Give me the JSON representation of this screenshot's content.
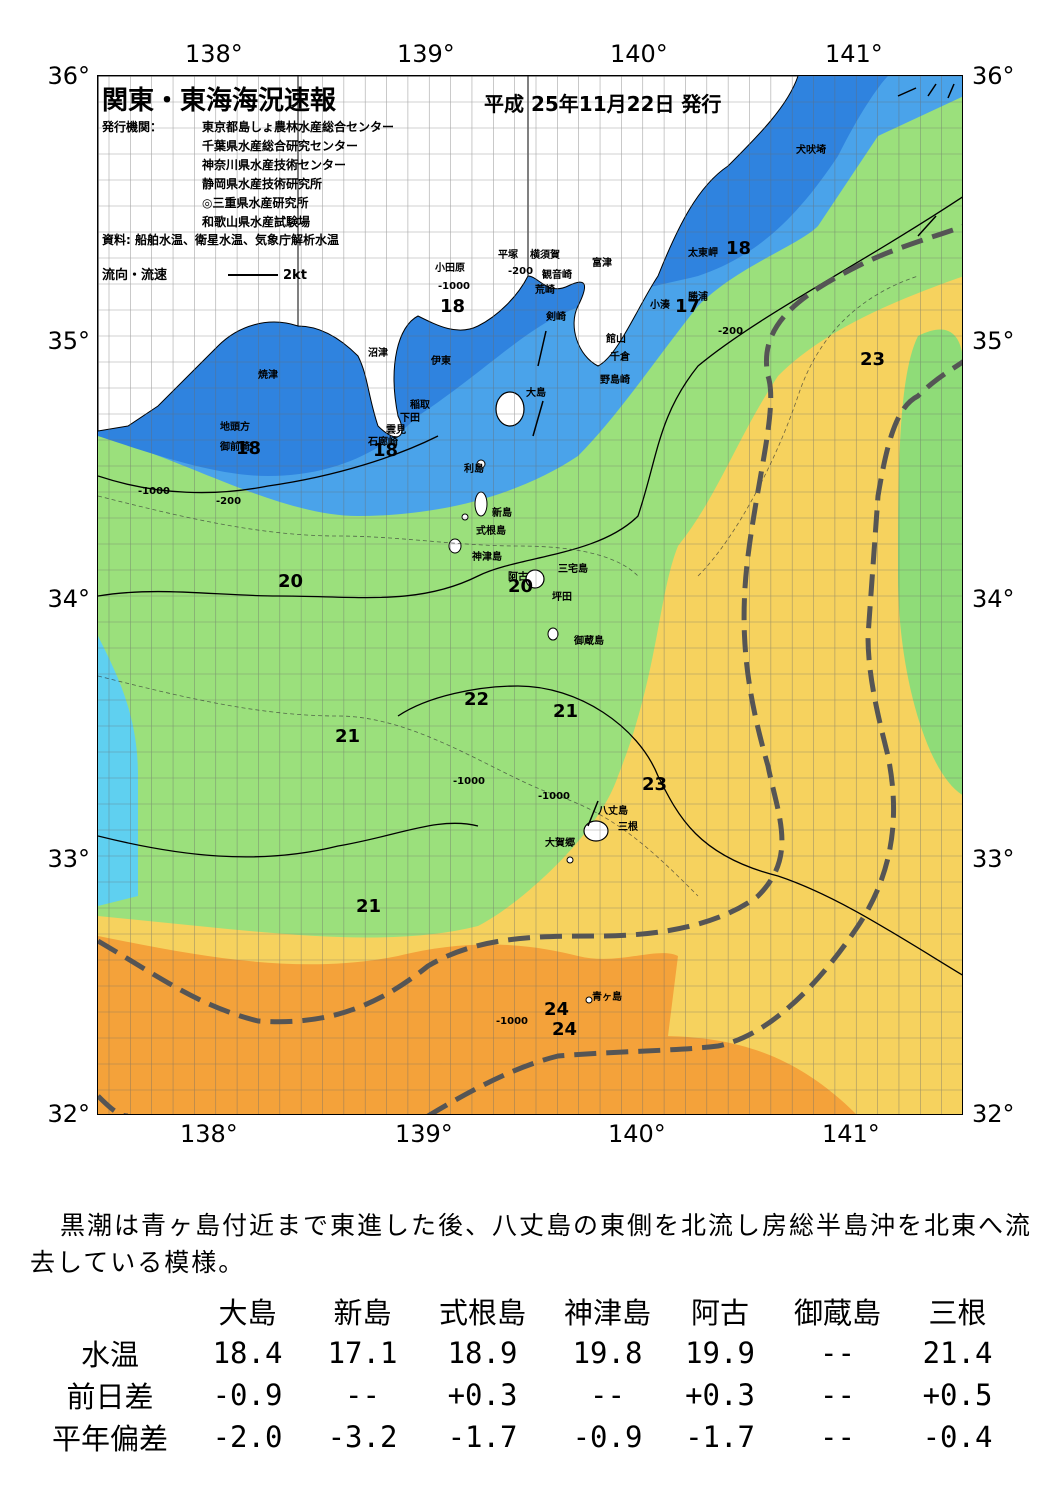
{
  "title": "関東・東海海況速報",
  "issue_date": "平成 25年11月22日 発行",
  "issuers_label": "発行機関：",
  "issuers": [
    "東京都島しょ農林水産総合センター",
    "千葉県水産総合研究センター",
    "神奈川県水産技術センター",
    "静岡県水産技術研究所",
    "◎三重県水産研究所",
    "和歌山県水産試験場"
  ],
  "source_note": "資料: 船舶水温、衛星水温、気象庁解析水温",
  "current_legend": {
    "label": "流向・流速",
    "scale": "2kt"
  },
  "lon_labels_top": [
    "138°",
    "139°",
    "140°",
    "141°"
  ],
  "lon_labels_bottom": [
    "138°",
    "139°",
    "140°",
    "141°"
  ],
  "lat_labels": [
    "36°",
    "35°",
    "34°",
    "33°",
    "32°"
  ],
  "colors": {
    "deep_blue": "#1e6fd9",
    "blue": "#4aa3ea",
    "light_blue": "#5fd0f0",
    "cyan": "#7ff0e8",
    "green": "#8de07a",
    "light_green": "#b8ea6e",
    "yellow": "#f4e060",
    "light_orange": "#f6c65a",
    "orange": "#f4a23a",
    "land": "#ffffff",
    "kuroshio_axis": "#555555"
  },
  "isotherm_labels": [
    "18",
    "18",
    "18",
    "18",
    "18",
    "17",
    "20",
    "20",
    "20",
    "21",
    "21",
    "21",
    "22",
    "23",
    "23",
    "24",
    "24"
  ],
  "depth_labels": [
    "-200",
    "-1000"
  ],
  "places": [
    "犬吠埼",
    "太東岬",
    "勝浦",
    "小湊",
    "富津",
    "館山",
    "千倉",
    "野島崎",
    "平塚",
    "横須賀",
    "観音崎",
    "荒崎",
    "剣崎",
    "小田原",
    "沼津",
    "伊東",
    "焼津",
    "稲取",
    "下田",
    "雲見",
    "石廊崎",
    "地頭方",
    "御前崎",
    "大島",
    "利島",
    "新島",
    "式根島",
    "神津島",
    "三宅島",
    "阿古",
    "坪田",
    "御蔵島",
    "八丈島",
    "三根",
    "大賀郷",
    "青ヶ島"
  ],
  "comment": "黒潮は青ヶ島付近まで東進した後、八丈島の東側を北流し房総半島沖を北東へ流去している模様。",
  "table": {
    "headers": [
      "大島",
      "新島",
      "式根島",
      "神津島",
      "阿古",
      "御蔵島",
      "三根"
    ],
    "rows": [
      {
        "label": "水温",
        "values": [
          "18.4",
          "17.1",
          "18.9",
          "19.8",
          "19.9",
          "--",
          "21.4"
        ]
      },
      {
        "label": "前日差",
        "values": [
          "-0.9",
          "--",
          "+0.3",
          "--",
          "+0.3",
          "--",
          "+0.5"
        ]
      },
      {
        "label": "平年偏差",
        "values": [
          "-2.0",
          "-3.2",
          "-1.7",
          "-0.9",
          "-1.7",
          "--",
          "-0.4"
        ]
      }
    ]
  }
}
